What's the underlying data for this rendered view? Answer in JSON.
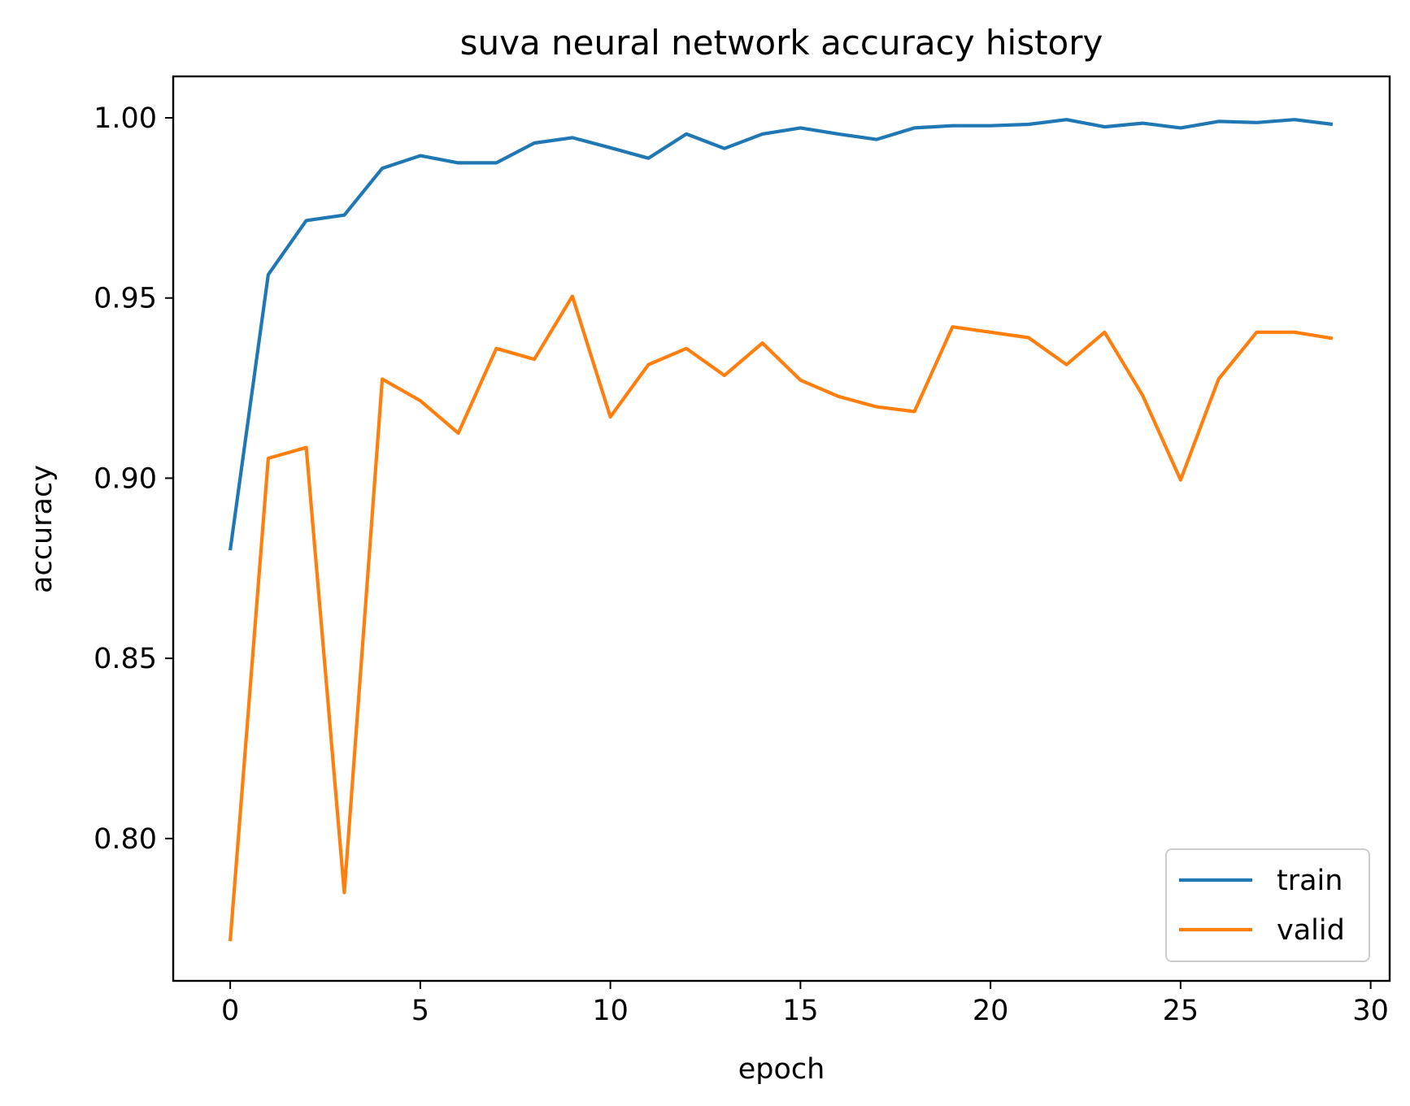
{
  "chart_data": {
    "type": "line",
    "title": "suva neural network accuracy history",
    "xlabel": "epoch",
    "ylabel": "accuracy",
    "xlim": [
      -1.5,
      30.5
    ],
    "ylim": [
      0.7605,
      1.0115
    ],
    "xticks": [
      0,
      5,
      10,
      15,
      20,
      25,
      30
    ],
    "xtick_labels": [
      "0",
      "5",
      "10",
      "15",
      "20",
      "25",
      "30"
    ],
    "yticks": [
      0.8,
      0.85,
      0.9,
      0.95,
      1.0
    ],
    "ytick_labels": [
      "0.80",
      "0.85",
      "0.90",
      "0.95",
      "1.00"
    ],
    "grid": false,
    "legend_position": "lower-right",
    "x": [
      0,
      1,
      2,
      3,
      4,
      5,
      6,
      7,
      8,
      9,
      10,
      11,
      12,
      13,
      14,
      15,
      16,
      17,
      18,
      19,
      20,
      21,
      22,
      23,
      24,
      25,
      26,
      27,
      28,
      29
    ],
    "series": [
      {
        "name": "train",
        "color": "#1f77b4",
        "values": [
          0.88,
          0.9565,
          0.9715,
          0.973,
          0.986,
          0.9895,
          0.9875,
          0.9875,
          0.993,
          0.9945,
          0.9917,
          0.9888,
          0.9955,
          0.9915,
          0.9955,
          0.9972,
          0.9955,
          0.994,
          0.9972,
          0.9978,
          0.9978,
          0.9982,
          0.9995,
          0.9975,
          0.9985,
          0.9972,
          0.999,
          0.9987,
          0.9995,
          0.9982
        ]
      },
      {
        "name": "valid",
        "color": "#ff7f0e",
        "values": [
          0.7715,
          0.9055,
          0.9085,
          0.785,
          0.9275,
          0.9215,
          0.9125,
          0.936,
          0.933,
          0.9505,
          0.917,
          0.9315,
          0.936,
          0.9285,
          0.9375,
          0.9272,
          0.9227,
          0.9198,
          0.9185,
          0.942,
          0.9405,
          0.939,
          0.9315,
          0.9405,
          0.923,
          0.8995,
          0.9275,
          0.9405,
          0.9405,
          0.9388
        ]
      }
    ]
  }
}
